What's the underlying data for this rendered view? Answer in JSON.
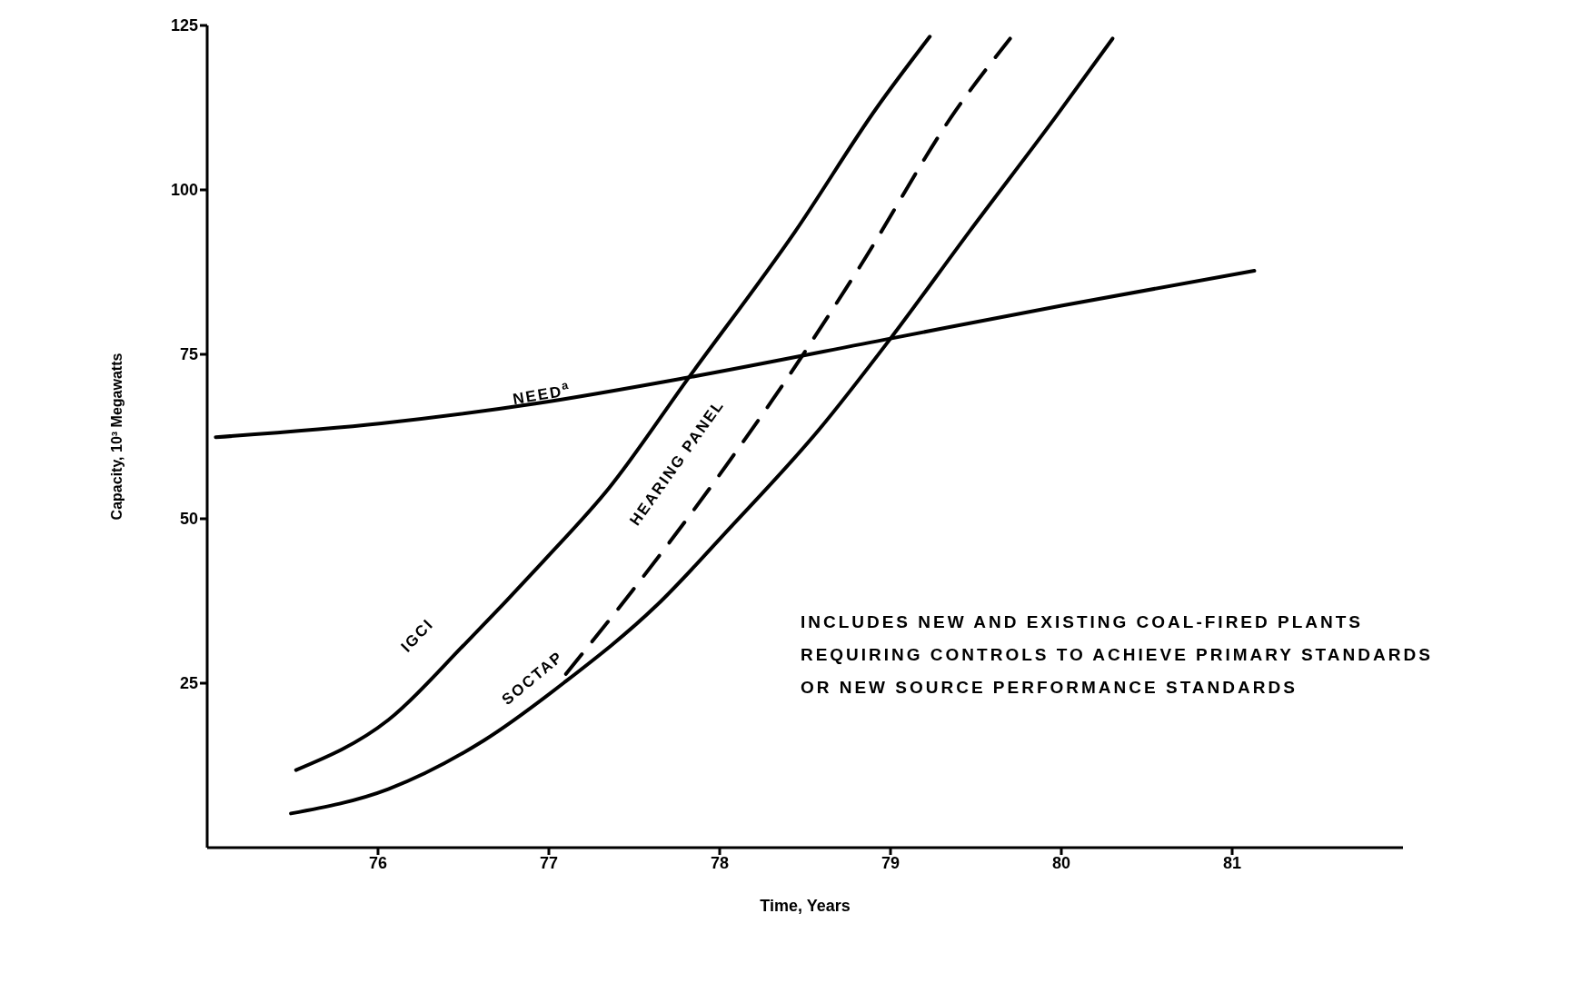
{
  "chart_data": {
    "type": "line",
    "xlabel": "Time, Years",
    "ylabel": "Capacity, 10³ Megawatts",
    "xlim": [
      75,
      82
    ],
    "ylim": [
      0,
      125
    ],
    "xticks": [
      76,
      77,
      78,
      79,
      80,
      81
    ],
    "yticks": [
      25,
      50,
      75,
      100,
      125
    ],
    "marker": "none",
    "annotations": [
      "INCLUDES NEW AND EXISTING COAL-FIRED PLANTS\nREQUIRING CONTROLS TO ACHIEVE PRIMARY STANDARDS\nOR NEW SOURCE PERFORMANCE STANDARDS"
    ],
    "series": [
      {
        "name": "NEED$^{a}$",
        "color": "#000000",
        "line_style": "solid",
        "x": [
          75.05,
          76.02,
          76.92,
          77.82,
          79,
          80,
          81.13
        ],
        "values": [
          62.4,
          64.5,
          67.5,
          71.5,
          77.4,
          82.4,
          87.7
        ]
      },
      {
        "name": "IGCI",
        "color": "#000000",
        "line_style": "solid",
        "x": [
          75.52,
          76.06,
          76.51,
          76.97,
          77.35,
          77.82,
          78.44,
          78.92,
          79.23
        ],
        "values": [
          11.8,
          19.4,
          31,
          43.6,
          54.6,
          71.5,
          93.6,
          112.5,
          123.3
        ]
      },
      {
        "name": "HEARING PANEL",
        "color": "#000000",
        "line_style": "dashed",
        "x": [
          77.1,
          77.49,
          77.98,
          78.31,
          78.82,
          79.38,
          79.7
        ],
        "values": [
          26.4,
          39.1,
          56,
          68.1,
          88.3,
          112,
          123
        ]
      },
      {
        "name": "SOCTAP",
        "color": "#000000",
        "line_style": "solid",
        "x": [
          75.49,
          76.06,
          76.62,
          77.09,
          77.63,
          78.06,
          78.58,
          79,
          79.46,
          79.97,
          80.3
        ],
        "values": [
          5.2,
          8.9,
          16.3,
          25.1,
          36.8,
          48.6,
          63.5,
          77.4,
          93.6,
          111.2,
          123
        ]
      }
    ]
  }
}
